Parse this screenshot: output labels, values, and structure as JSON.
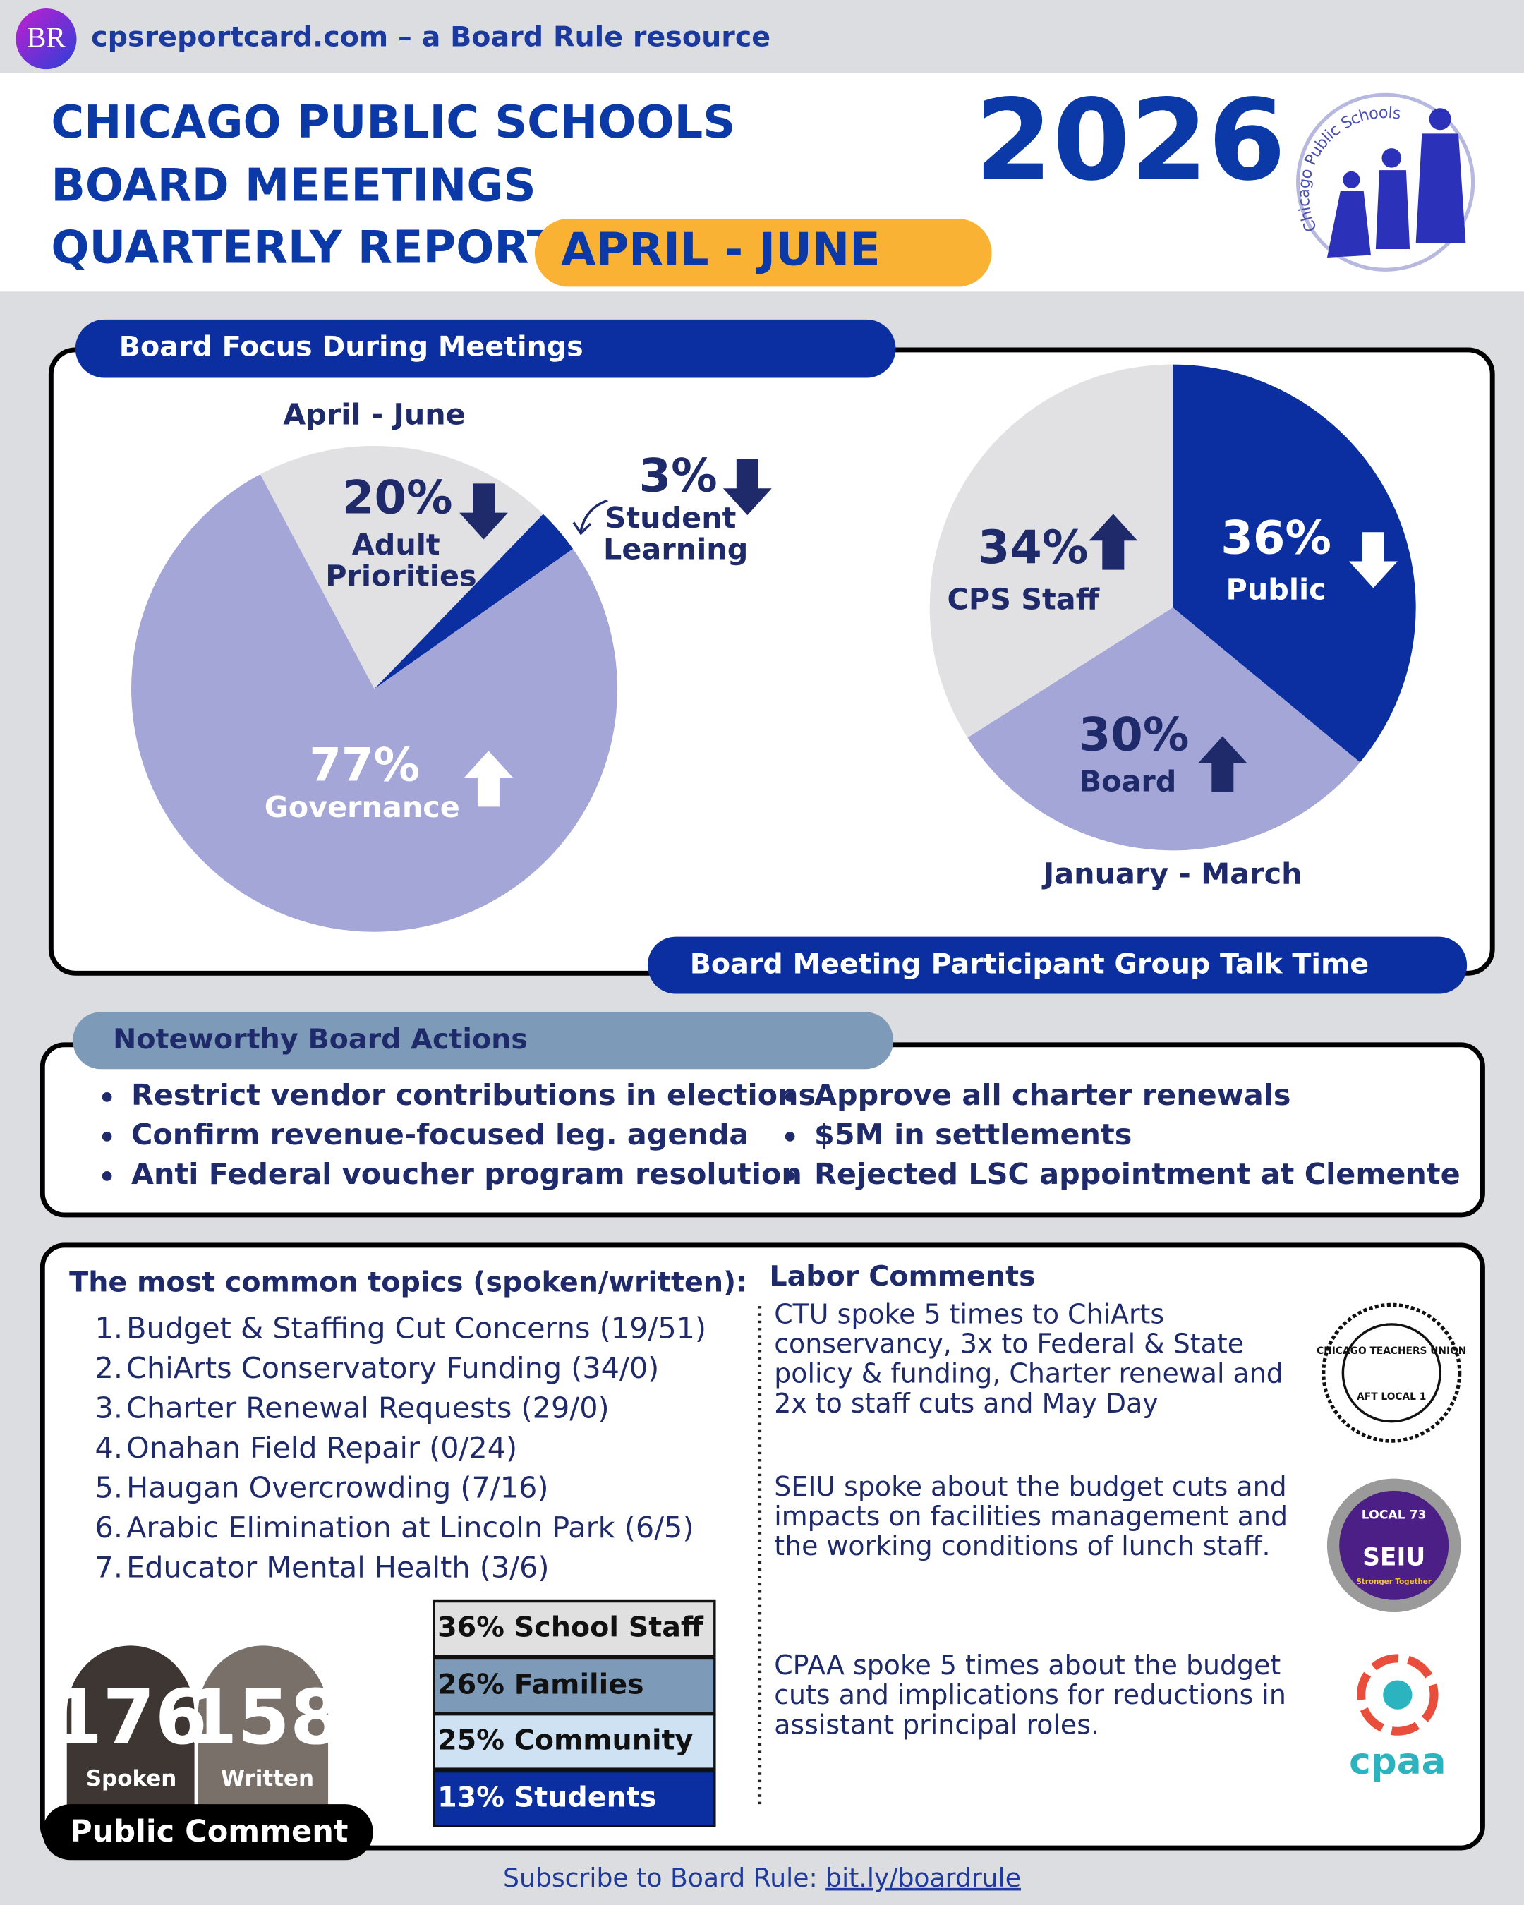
{
  "header": {
    "logo": "BR",
    "site": "cpsreportcard.com – a Board Rule resource",
    "title_lines": [
      "CHICAGO PUBLIC SCHOOLS",
      "BOARD MEEETINGS",
      "QUARTERLY REPORT"
    ],
    "period": "APRIL - JUNE",
    "year": "2026",
    "cps_logo_text": "Chicago Public Schools"
  },
  "focus": {
    "title": "Board Focus During Meetings",
    "subtitle": "Board Meeting Participant Group Talk Time"
  },
  "chart_data": [
    {
      "type": "pie",
      "title": "April - June",
      "categories": [
        "Adult Priorities",
        "Student Learning",
        "Governance"
      ],
      "values": [
        20,
        3,
        77
      ],
      "value_labels": [
        "20%",
        "3%",
        "77%"
      ],
      "colors": [
        "#e1e1e4",
        "#0b2fa0",
        "#a3a6d6"
      ],
      "trends": [
        "down",
        "down",
        "up"
      ]
    },
    {
      "type": "pie",
      "title": "January - March",
      "categories": [
        "Public",
        "Board",
        "CPS Staff"
      ],
      "values": [
        36,
        30,
        34
      ],
      "value_labels": [
        "36%",
        "30%",
        "34%"
      ],
      "colors": [
        "#0b2fa0",
        "#a3a6d6",
        "#e1e1e4"
      ],
      "trends": [
        "down",
        "up",
        "up"
      ]
    }
  ],
  "actions": {
    "title": "Noteworthy Board Actions",
    "items": [
      "Restrict vendor contributions in elections",
      "Confirm revenue-focused leg. agenda",
      "Anti Federal voucher program resolution",
      "Approve all charter renewals",
      "$5M in settlements",
      "Rejected LSC appointment at Clemente"
    ]
  },
  "topics": {
    "title": "The most common topics (spoken/written):",
    "items": [
      {
        "number": "1.",
        "text": "Budget & Staffing Cut Concerns (19/51)"
      },
      {
        "number": "2.",
        "text": "ChiArts Conservatory Funding (34/0)"
      },
      {
        "number": "3.",
        "text": "Charter Renewal Requests (29/0)"
      },
      {
        "number": "4.",
        "text": "Onahan Field Repair (0/24)"
      },
      {
        "number": "5.",
        "text": "Haugan Overcrowding (7/16)"
      },
      {
        "number": "6.",
        "text": "Arabic Elimination at Lincoln Park (6/5)"
      },
      {
        "number": "7.",
        "text": "Educator Mental Health (3/6)"
      }
    ]
  },
  "public_comment": {
    "title": "Public Comment",
    "counts": [
      {
        "number": "176",
        "label": "Spoken"
      },
      {
        "number": "158",
        "label": "Written"
      }
    ],
    "groups": [
      "36% School Staff",
      "26% Families",
      "25% Community",
      "13% Students"
    ]
  },
  "labor": {
    "title": "Labor Comments",
    "comments": [
      {
        "lines": [
          "CTU spoke 5 times to ChiArts",
          "conservancy, 3x to Federal & State",
          "policy & funding, Charter renewal and",
          "2x to staff cuts and May Day"
        ],
        "logo": [
          "CHICAGO TEACHERS UNION",
          "AFT LOCAL 1"
        ]
      },
      {
        "lines": [
          "SEIU spoke about the budget cuts and",
          "impacts on facilities management and",
          "the working conditions of lunch staff."
        ],
        "logo": [
          "LOCAL 73",
          "SEIU",
          "Stronger Together"
        ]
      },
      {
        "lines": [
          "CPAA spoke 5 times about the budget",
          "cuts and implications for reductions in",
          "assistant principal roles."
        ],
        "logo": [
          "cpaa"
        ]
      }
    ]
  },
  "footer": {
    "text": "Subscribe to Board Rule:",
    "link": "bit.ly/boardrule"
  }
}
